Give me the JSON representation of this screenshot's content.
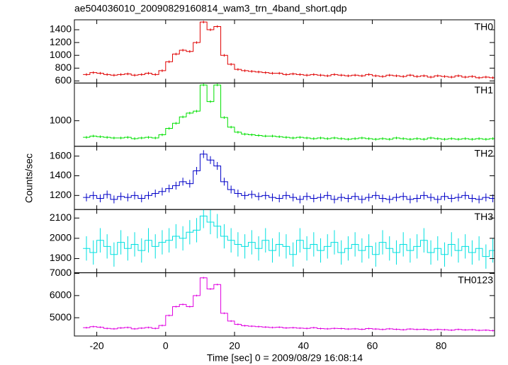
{
  "chart_data": {
    "type": "line",
    "title": "ae504036010_20090829160814_wam3_trn_4band_short.qdp",
    "xlabel": "Time [sec] 0 = 2009/08/29 16:08:14",
    "ylabel": "Counts/sec",
    "xlim": [
      -26.5,
      95.5
    ],
    "xticks": [
      -20,
      0,
      20,
      40,
      60,
      80
    ],
    "x": [
      -23,
      -21,
      -19,
      -17,
      -15,
      -13,
      -11,
      -9,
      -7,
      -5,
      -3,
      -1,
      1,
      3,
      5,
      7,
      9,
      11,
      13,
      15,
      17,
      19,
      21,
      23,
      25,
      27,
      29,
      31,
      33,
      35,
      37,
      39,
      41,
      43,
      45,
      47,
      49,
      51,
      53,
      55,
      57,
      59,
      61,
      63,
      65,
      67,
      69,
      71,
      73,
      75,
      77,
      79,
      81,
      83,
      85,
      87,
      89,
      91,
      93,
      95
    ],
    "series": [
      {
        "name": "TH0",
        "color": "#e00000",
        "error": 20,
        "ylim": [
          567,
          1555
        ],
        "yticks": [
          600,
          800,
          1000,
          1200,
          1400
        ],
        "values": [
          700,
          730,
          720,
          700,
          690,
          700,
          710,
          690,
          700,
          720,
          700,
          760,
          900,
          1020,
          1080,
          1060,
          1200,
          1520,
          1400,
          1450,
          1000,
          860,
          780,
          760,
          750,
          740,
          730,
          720,
          720,
          700,
          710,
          700,
          690,
          700,
          690,
          680,
          700,
          690,
          680,
          690,
          680,
          700,
          680,
          670,
          690,
          680,
          670,
          690,
          670,
          680,
          660,
          680,
          670,
          660,
          680,
          660,
          670,
          650,
          660,
          650
        ]
      },
      {
        "name": "TH1",
        "color": "#00e000",
        "error": 20,
        "ylim": [
          600,
          1590
        ],
        "yticks": [
          1000
        ],
        "values": [
          740,
          760,
          750,
          740,
          730,
          730,
          740,
          720,
          730,
          740,
          730,
          780,
          880,
          960,
          1060,
          1120,
          1150,
          1560,
          1300,
          1560,
          1050,
          900,
          820,
          790,
          780,
          770,
          760,
          760,
          750,
          740,
          730,
          740,
          730,
          720,
          730,
          720,
          730,
          720,
          710,
          720,
          730,
          720,
          710,
          720,
          710,
          730,
          720,
          710,
          720,
          710,
          730,
          720,
          710,
          720,
          710,
          720,
          710,
          720,
          710,
          720
        ]
      },
      {
        "name": "TH2",
        "color": "#0000c8",
        "error": 40,
        "ylim": [
          1057,
          1700
        ],
        "yticks": [
          1200,
          1400,
          1600
        ],
        "values": [
          1180,
          1200,
          1170,
          1210,
          1160,
          1190,
          1180,
          1200,
          1170,
          1200,
          1220,
          1240,
          1270,
          1300,
          1340,
          1320,
          1450,
          1620,
          1560,
          1500,
          1340,
          1260,
          1220,
          1200,
          1210,
          1190,
          1200,
          1180,
          1170,
          1200,
          1180,
          1160,
          1190,
          1170,
          1180,
          1200,
          1160,
          1180,
          1170,
          1190,
          1160,
          1180,
          1200,
          1170,
          1160,
          1180,
          1190,
          1160,
          1170,
          1200,
          1180,
          1160,
          1190,
          1170,
          1180,
          1200,
          1170,
          1160,
          1180,
          1170
        ]
      },
      {
        "name": "TH3",
        "color": "#00e0e0",
        "error": 60,
        "ylim": [
          1830,
          2142
        ],
        "yticks": [
          1900,
          2000,
          2100
        ],
        "values": [
          1950,
          1930,
          1990,
          1960,
          1920,
          1980,
          1950,
          1970,
          1940,
          1990,
          1960,
          1980,
          1990,
          2010,
          2000,
          2030,
          2040,
          2110,
          2080,
          2060,
          2010,
          1990,
          1970,
          1960,
          1980,
          1950,
          1990,
          1940,
          1970,
          1960,
          1920,
          1990,
          1950,
          1970,
          1940,
          1960,
          1980,
          1930,
          1950,
          1970,
          1940,
          1960,
          1920,
          1980,
          1950,
          1930,
          1970,
          1940,
          1960,
          1990,
          1930,
          1950,
          1920,
          1970,
          1940,
          1960,
          1930,
          1950,
          1910,
          1940
        ]
      },
      {
        "name": "TH0123",
        "color": "#e000e0",
        "error": 40,
        "ylim": [
          4175,
          7030
        ],
        "yticks": [
          5000,
          6000,
          7000
        ],
        "values": [
          4550,
          4600,
          4570,
          4520,
          4500,
          4540,
          4560,
          4500,
          4530,
          4560,
          4520,
          4650,
          5100,
          5500,
          5600,
          5500,
          6000,
          6800,
          6300,
          6500,
          5200,
          4850,
          4700,
          4640,
          4620,
          4600,
          4580,
          4560,
          4570,
          4540,
          4550,
          4530,
          4520,
          4550,
          4510,
          4500,
          4520,
          4510,
          4490,
          4500,
          4480,
          4510,
          4490,
          4470,
          4500,
          4480,
          4460,
          4490,
          4470,
          4480,
          4450,
          4470,
          4460,
          4440,
          4470,
          4450,
          4460,
          4430,
          4440,
          4420
        ]
      }
    ]
  }
}
